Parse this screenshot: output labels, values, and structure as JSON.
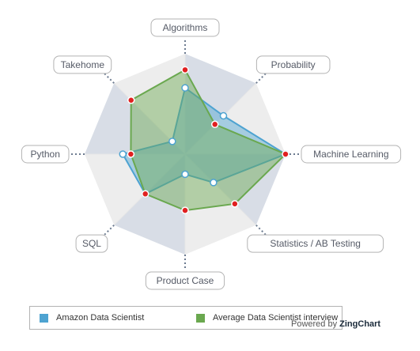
{
  "chart_data": {
    "type": "radar",
    "axes": [
      "Algorithms",
      "Probability",
      "Machine Learning",
      "Statistics / AB Testing",
      "Product Case",
      "SQL",
      "Python",
      "Takehome"
    ],
    "rmax": 5,
    "levels": 5,
    "series": [
      {
        "name": "Amazon Data Scientist",
        "values": [
          3.3,
          2.7,
          5.0,
          2.0,
          1.0,
          2.8,
          3.1,
          0.9
        ],
        "color": "#4ea3d1"
      },
      {
        "name": "Average Data Scientist interview",
        "values": [
          4.2,
          2.1,
          5.0,
          3.5,
          2.8,
          2.8,
          2.7,
          3.8
        ],
        "color": "#6aa84f"
      }
    ],
    "band_colors": [
      "#d8dde6",
      "#ededed"
    ],
    "marker_color": "#e02020"
  },
  "credit": {
    "prefix": "Powered by",
    "brand": "ZingChart"
  }
}
